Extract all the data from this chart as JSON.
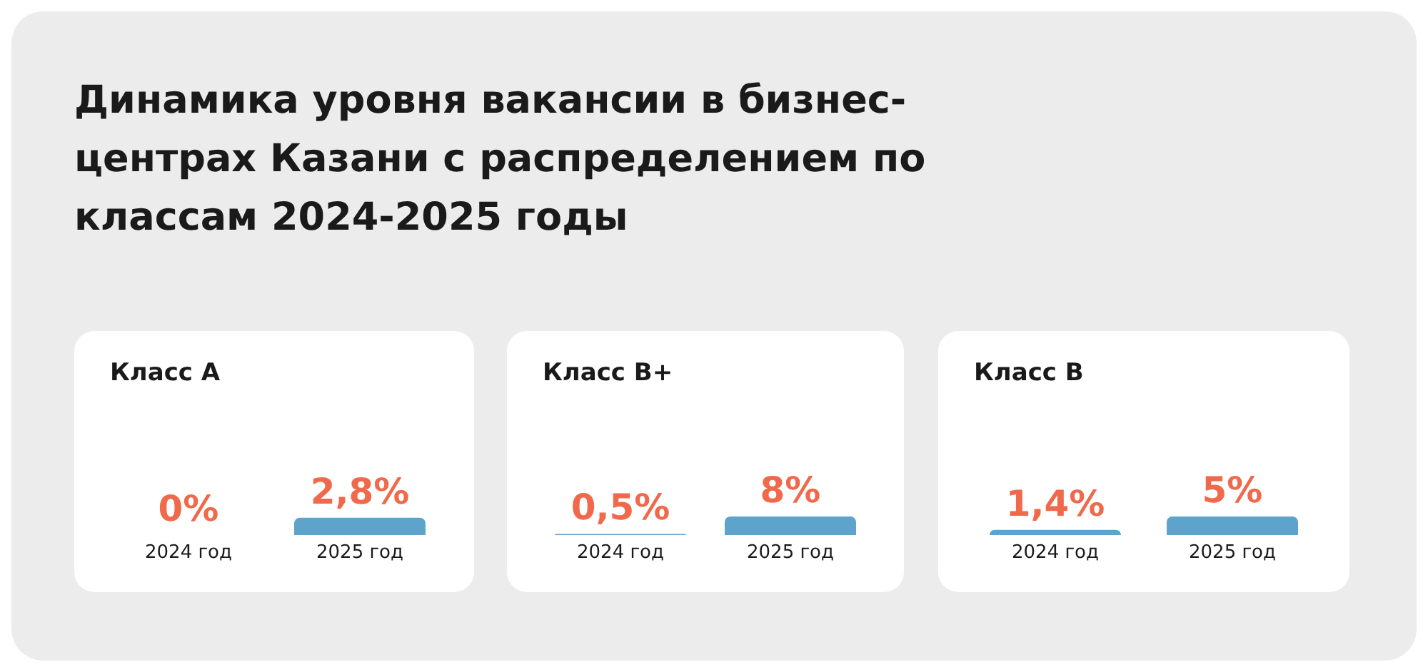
{
  "chart_data": [
    {
      "type": "bar",
      "title": "Динамика уровня вакансии в бизнес-центрах Казани с распределением по классам 2024-2025 годы",
      "subtitle": "Класс А",
      "categories": [
        "2024 год",
        "2025 год"
      ],
      "values": [
        0,
        2.8
      ],
      "value_labels": [
        "0%",
        "2,8%"
      ],
      "color": "#5ea3cc"
    },
    {
      "type": "bar",
      "subtitle": "Класс B+",
      "categories": [
        "2024 год",
        "2025 год"
      ],
      "values": [
        0.5,
        8
      ],
      "value_labels": [
        "0,5%",
        "8%"
      ],
      "color": "#5ea3cc"
    },
    {
      "type": "bar",
      "subtitle": "Класс B",
      "categories": [
        "2024 год",
        "2025 год"
      ],
      "values": [
        1.4,
        5
      ],
      "value_labels": [
        "1,4%",
        "5%"
      ],
      "color": "#5ea3cc"
    }
  ]
}
